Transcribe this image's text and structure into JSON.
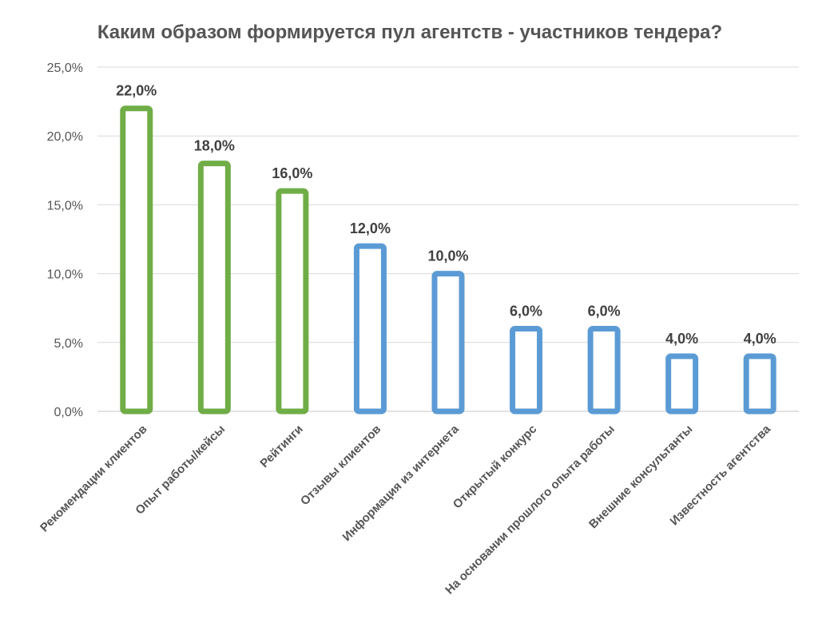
{
  "chart_data": {
    "type": "bar",
    "title": "Каким образом формируется пул агентств - участников тендера?",
    "xlabel": "",
    "ylabel": "",
    "ylim": [
      0,
      25
    ],
    "yticks": [
      0,
      5,
      10,
      15,
      20,
      25
    ],
    "ytick_labels": [
      "0,0%",
      "5,0%",
      "10,0%",
      "15,0%",
      "20,0%",
      "25,0%"
    ],
    "grid": true,
    "categories": [
      "Рекомендации клиентов",
      "Опыт работы/кейсы",
      "Рейтинги",
      "Отзывы клиентов",
      "Информация из интернета",
      "Открытый конкурс",
      "На основании прошлого опыта работы",
      "Внешние консультанты",
      "Известность агентства"
    ],
    "values": [
      22,
      18,
      16,
      12,
      10,
      6,
      6,
      4,
      4
    ],
    "value_labels": [
      "22,0%",
      "18,0%",
      "16,0%",
      "12,0%",
      "10,0%",
      "6,0%",
      "6,0%",
      "4,0%",
      "4,0%"
    ],
    "bar_colors": [
      "#70ad47",
      "#70ad47",
      "#70ad47",
      "#5b9bd5",
      "#5b9bd5",
      "#5b9bd5",
      "#5b9bd5",
      "#5b9bd5",
      "#5b9bd5"
    ]
  }
}
